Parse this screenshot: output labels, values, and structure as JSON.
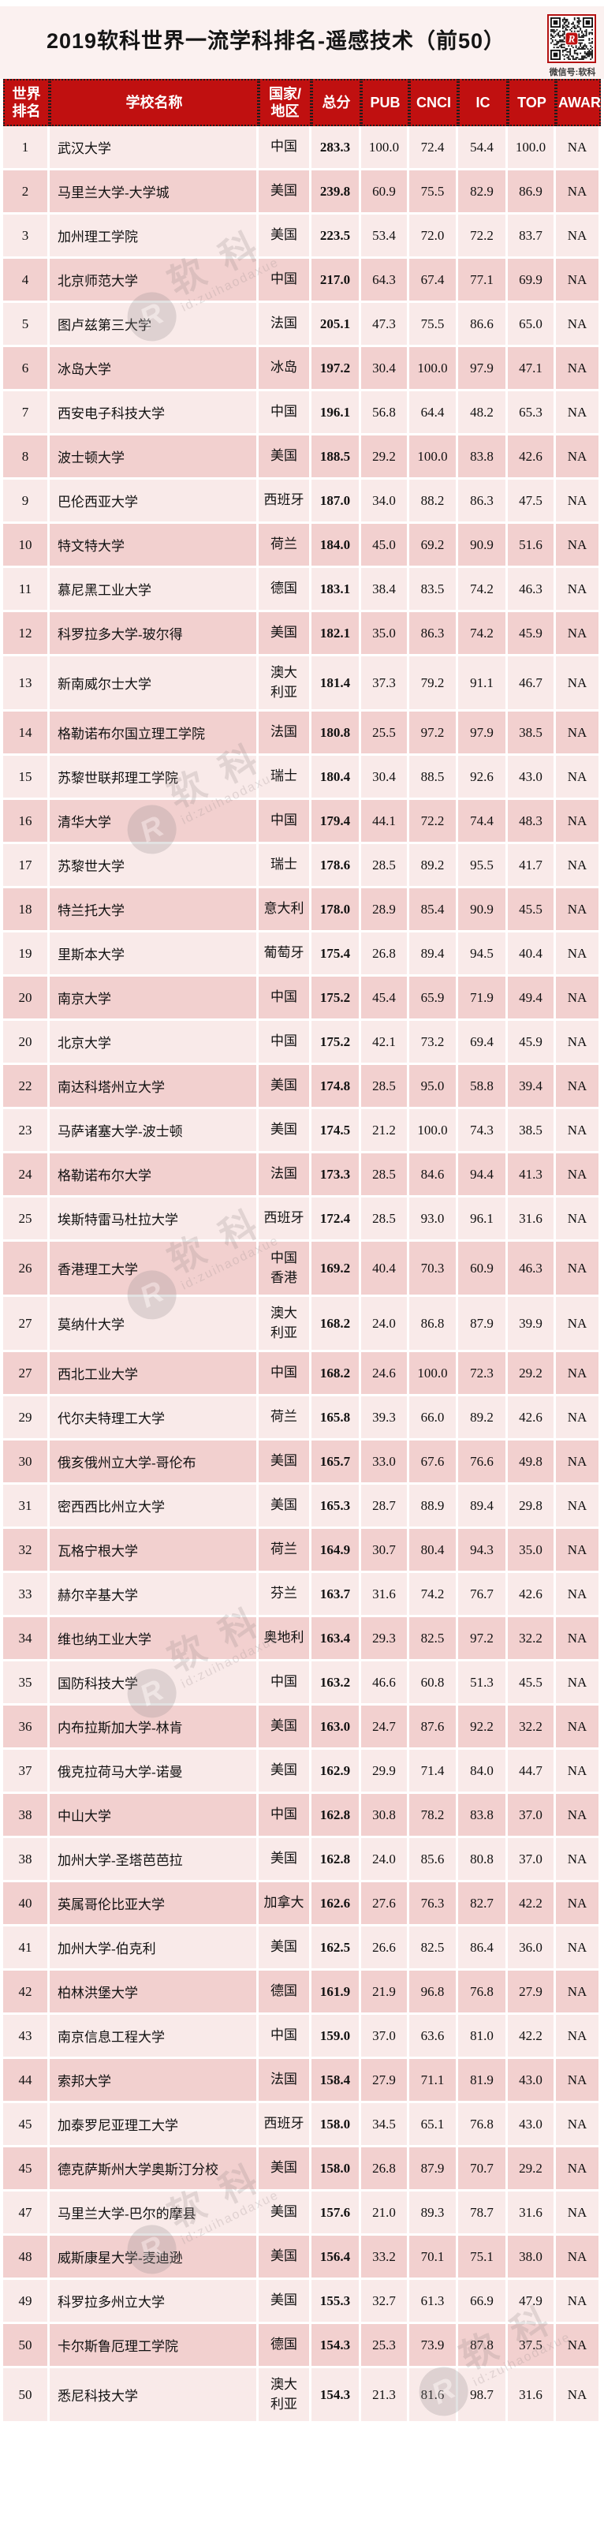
{
  "header": {
    "title": "2019软科世界一流学科排名-遥感技术（前50）",
    "qr_caption": "微信号:软科",
    "qr_logo_letter": "R"
  },
  "watermark": {
    "brand": "软科",
    "id_text": "id:zuihaodaxue",
    "logo_letter": "R"
  },
  "colors": {
    "header_red": "#c01010",
    "row_light": "#f9eae9",
    "row_dark": "#f2d0cf",
    "title_bg": "#fbf1f0"
  },
  "table": {
    "columns": [
      {
        "key": "rank",
        "label": "世界\n排名"
      },
      {
        "key": "name",
        "label": "学校名称"
      },
      {
        "key": "country",
        "label": "国家/\n地区"
      },
      {
        "key": "total",
        "label": "总分"
      },
      {
        "key": "pub",
        "label": "PUB"
      },
      {
        "key": "cnci",
        "label": "CNCI"
      },
      {
        "key": "ic",
        "label": "IC"
      },
      {
        "key": "top",
        "label": "TOP"
      },
      {
        "key": "award",
        "label": "AWARD"
      }
    ],
    "rows": [
      [
        "1",
        "武汉大学",
        "中国",
        "283.3",
        "100.0",
        "72.4",
        "54.4",
        "100.0",
        "NA"
      ],
      [
        "2",
        "马里兰大学-大学城",
        "美国",
        "239.8",
        "60.9",
        "75.5",
        "82.9",
        "86.9",
        "NA"
      ],
      [
        "3",
        "加州理工学院",
        "美国",
        "223.5",
        "53.4",
        "72.0",
        "72.2",
        "83.7",
        "NA"
      ],
      [
        "4",
        "北京师范大学",
        "中国",
        "217.0",
        "64.3",
        "67.4",
        "77.1",
        "69.9",
        "NA"
      ],
      [
        "5",
        "图卢兹第三大学",
        "法国",
        "205.1",
        "47.3",
        "75.5",
        "86.6",
        "65.0",
        "NA"
      ],
      [
        "6",
        "冰岛大学",
        "冰岛",
        "197.2",
        "30.4",
        "100.0",
        "97.9",
        "47.1",
        "NA"
      ],
      [
        "7",
        "西安电子科技大学",
        "中国",
        "196.1",
        "56.8",
        "64.4",
        "48.2",
        "65.3",
        "NA"
      ],
      [
        "8",
        "波士顿大学",
        "美国",
        "188.5",
        "29.2",
        "100.0",
        "83.8",
        "42.6",
        "NA"
      ],
      [
        "9",
        "巴伦西亚大学",
        "西班牙",
        "187.0",
        "34.0",
        "88.2",
        "86.3",
        "47.5",
        "NA"
      ],
      [
        "10",
        "特文特大学",
        "荷兰",
        "184.0",
        "45.0",
        "69.2",
        "90.9",
        "51.6",
        "NA"
      ],
      [
        "11",
        "慕尼黑工业大学",
        "德国",
        "183.1",
        "38.4",
        "83.5",
        "74.2",
        "46.3",
        "NA"
      ],
      [
        "12",
        "科罗拉多大学-玻尔得",
        "美国",
        "182.1",
        "35.0",
        "86.3",
        "74.2",
        "45.9",
        "NA"
      ],
      [
        "13",
        "新南威尔士大学",
        "澳大利亚",
        "181.4",
        "37.3",
        "79.2",
        "91.1",
        "46.7",
        "NA"
      ],
      [
        "14",
        "格勒诺布尔国立理工学院",
        "法国",
        "180.8",
        "25.5",
        "97.2",
        "97.9",
        "38.5",
        "NA"
      ],
      [
        "15",
        "苏黎世联邦理工学院",
        "瑞士",
        "180.4",
        "30.4",
        "88.5",
        "92.6",
        "43.0",
        "NA"
      ],
      [
        "16",
        "清华大学",
        "中国",
        "179.4",
        "44.1",
        "72.2",
        "74.4",
        "48.3",
        "NA"
      ],
      [
        "17",
        "苏黎世大学",
        "瑞士",
        "178.6",
        "28.5",
        "89.2",
        "95.5",
        "41.7",
        "NA"
      ],
      [
        "18",
        "特兰托大学",
        "意大利",
        "178.0",
        "28.9",
        "85.4",
        "90.9",
        "45.5",
        "NA"
      ],
      [
        "19",
        "里斯本大学",
        "葡萄牙",
        "175.4",
        "26.8",
        "89.4",
        "94.5",
        "40.4",
        "NA"
      ],
      [
        "20",
        "南京大学",
        "中国",
        "175.2",
        "45.4",
        "65.9",
        "71.9",
        "49.4",
        "NA"
      ],
      [
        "20",
        "北京大学",
        "中国",
        "175.2",
        "42.1",
        "73.2",
        "69.4",
        "45.9",
        "NA"
      ],
      [
        "22",
        "南达科塔州立大学",
        "美国",
        "174.8",
        "28.5",
        "95.0",
        "58.8",
        "39.4",
        "NA"
      ],
      [
        "23",
        "马萨诸塞大学-波士顿",
        "美国",
        "174.5",
        "21.2",
        "100.0",
        "74.3",
        "38.5",
        "NA"
      ],
      [
        "24",
        "格勒诺布尔大学",
        "法国",
        "173.3",
        "28.5",
        "84.6",
        "94.4",
        "41.3",
        "NA"
      ],
      [
        "25",
        "埃斯特雷马杜拉大学",
        "西班牙",
        "172.4",
        "28.5",
        "93.0",
        "96.1",
        "31.6",
        "NA"
      ],
      [
        "26",
        "香港理工大学",
        "中国香港",
        "169.2",
        "40.4",
        "70.3",
        "60.9",
        "46.3",
        "NA"
      ],
      [
        "27",
        "莫纳什大学",
        "澳大利亚",
        "168.2",
        "24.0",
        "86.8",
        "87.9",
        "39.9",
        "NA"
      ],
      [
        "27",
        "西北工业大学",
        "中国",
        "168.2",
        "24.6",
        "100.0",
        "72.3",
        "29.2",
        "NA"
      ],
      [
        "29",
        "代尔夫特理工大学",
        "荷兰",
        "165.8",
        "39.3",
        "66.0",
        "89.2",
        "42.6",
        "NA"
      ],
      [
        "30",
        "俄亥俄州立大学-哥伦布",
        "美国",
        "165.7",
        "33.0",
        "67.6",
        "76.6",
        "49.8",
        "NA"
      ],
      [
        "31",
        "密西西比州立大学",
        "美国",
        "165.3",
        "28.7",
        "88.9",
        "89.4",
        "29.8",
        "NA"
      ],
      [
        "32",
        "瓦格宁根大学",
        "荷兰",
        "164.9",
        "30.7",
        "80.4",
        "94.3",
        "35.0",
        "NA"
      ],
      [
        "33",
        "赫尔辛基大学",
        "芬兰",
        "163.7",
        "31.6",
        "74.2",
        "76.7",
        "42.6",
        "NA"
      ],
      [
        "34",
        "维也纳工业大学",
        "奥地利",
        "163.4",
        "29.3",
        "82.5",
        "97.2",
        "32.2",
        "NA"
      ],
      [
        "35",
        "国防科技大学",
        "中国",
        "163.2",
        "46.6",
        "60.8",
        "51.3",
        "45.5",
        "NA"
      ],
      [
        "36",
        "内布拉斯加大学-林肯",
        "美国",
        "163.0",
        "24.7",
        "87.6",
        "92.2",
        "32.2",
        "NA"
      ],
      [
        "37",
        "俄克拉荷马大学-诺曼",
        "美国",
        "162.9",
        "29.9",
        "71.4",
        "84.0",
        "44.7",
        "NA"
      ],
      [
        "38",
        "中山大学",
        "中国",
        "162.8",
        "30.8",
        "78.2",
        "83.8",
        "37.0",
        "NA"
      ],
      [
        "38",
        "加州大学-圣塔芭芭拉",
        "美国",
        "162.8",
        "24.0",
        "85.6",
        "80.8",
        "37.0",
        "NA"
      ],
      [
        "40",
        "英属哥伦比亚大学",
        "加拿大",
        "162.6",
        "27.6",
        "76.3",
        "82.7",
        "42.2",
        "NA"
      ],
      [
        "41",
        "加州大学-伯克利",
        "美国",
        "162.5",
        "26.6",
        "82.5",
        "86.4",
        "36.0",
        "NA"
      ],
      [
        "42",
        "柏林洪堡大学",
        "德国",
        "161.9",
        "21.9",
        "96.8",
        "76.8",
        "27.9",
        "NA"
      ],
      [
        "43",
        "南京信息工程大学",
        "中国",
        "159.0",
        "37.0",
        "63.6",
        "81.0",
        "42.2",
        "NA"
      ],
      [
        "44",
        "索邦大学",
        "法国",
        "158.4",
        "27.9",
        "71.1",
        "81.9",
        "43.0",
        "NA"
      ],
      [
        "45",
        "加泰罗尼亚理工大学",
        "西班牙",
        "158.0",
        "34.5",
        "65.1",
        "76.8",
        "43.0",
        "NA"
      ],
      [
        "45",
        "德克萨斯州大学奥斯汀分校",
        "美国",
        "158.0",
        "26.8",
        "87.9",
        "70.7",
        "29.2",
        "NA"
      ],
      [
        "47",
        "马里兰大学-巴尔的摩县",
        "美国",
        "157.6",
        "21.0",
        "89.3",
        "78.7",
        "31.6",
        "NA"
      ],
      [
        "48",
        "威斯康星大学-麦迪逊",
        "美国",
        "156.4",
        "33.2",
        "70.1",
        "75.1",
        "38.0",
        "NA"
      ],
      [
        "49",
        "科罗拉多州立大学",
        "美国",
        "155.3",
        "32.7",
        "61.3",
        "66.9",
        "47.9",
        "NA"
      ],
      [
        "50",
        "卡尔斯鲁厄理工学院",
        "德国",
        "154.3",
        "25.3",
        "73.9",
        "87.8",
        "37.5",
        "NA"
      ],
      [
        "50",
        "悉尼科技大学",
        "澳大利亚",
        "154.3",
        "21.3",
        "81.6",
        "98.7",
        "31.6",
        "NA"
      ]
    ]
  }
}
